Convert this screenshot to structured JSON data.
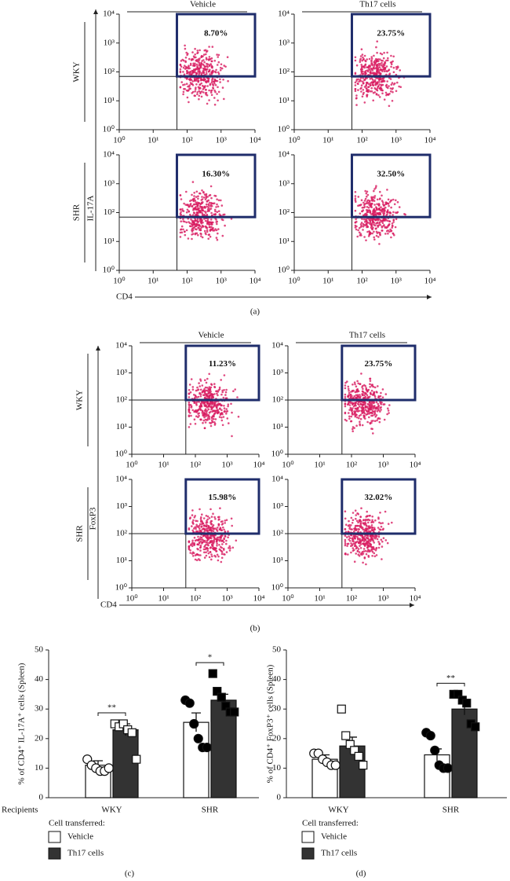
{
  "chart_data": [
    {
      "type": "flow",
      "caption": "(a)",
      "columns": [
        "Vehicle",
        "Th17 cells"
      ],
      "rows": [
        "WKY",
        "SHR"
      ],
      "x_label": "CD4",
      "y_label": "IL-17A",
      "log_scale": true,
      "xlim": [
        1,
        10000
      ],
      "ylim": [
        1,
        10000
      ],
      "xticks": [
        {
          "value": 1,
          "label": "10⁰"
        },
        {
          "value": 10,
          "label": "10¹"
        },
        {
          "value": 100,
          "label": "10²"
        },
        {
          "value": 1000,
          "label": "10³"
        },
        {
          "value": 10000,
          "label": "10⁴"
        }
      ],
      "yticks": [
        {
          "value": 1,
          "label": "10⁰"
        },
        {
          "value": 10,
          "label": "10¹"
        },
        {
          "value": 100,
          "label": "10²"
        },
        {
          "value": 1000,
          "label": "10³"
        },
        {
          "value": 10000,
          "label": "10⁴"
        }
      ],
      "gate": {
        "x": 50,
        "y": 70
      },
      "gate_color": "#1f2d6b",
      "event_color": "#d81b60",
      "values": [
        [
          8.7,
          23.75
        ],
        [
          16.3,
          32.5
        ]
      ],
      "value_labels": [
        [
          "8.70%",
          "23.75%"
        ],
        [
          "16.30%",
          "32.50%"
        ]
      ]
    },
    {
      "type": "flow",
      "caption": "(b)",
      "columns": [
        "Vehicle",
        "Th17 cells"
      ],
      "rows": [
        "WKY",
        "SHR"
      ],
      "x_label": "CD4",
      "y_label": "FoxP3",
      "log_scale": true,
      "xlim": [
        1,
        10000
      ],
      "ylim": [
        1,
        10000
      ],
      "xticks": [
        {
          "value": 1,
          "label": "10⁰"
        },
        {
          "value": 10,
          "label": "10¹"
        },
        {
          "value": 100,
          "label": "10²"
        },
        {
          "value": 1000,
          "label": "10³"
        },
        {
          "value": 10000,
          "label": "10⁴"
        }
      ],
      "yticks": [
        {
          "value": 1,
          "label": "10⁰"
        },
        {
          "value": 10,
          "label": "10¹"
        },
        {
          "value": 100,
          "label": "10²"
        },
        {
          "value": 1000,
          "label": "10³"
        },
        {
          "value": 10000,
          "label": "10⁴"
        }
      ],
      "gate": {
        "x": 50,
        "y": 100
      },
      "gate_color": "#1f2d6b",
      "event_color": "#d81b60",
      "values": [
        [
          11.23,
          23.75
        ],
        [
          15.98,
          32.02
        ]
      ],
      "value_labels": [
        [
          "11.23%",
          "23.75%"
        ],
        [
          "15.98%",
          "32.02%"
        ]
      ]
    },
    {
      "type": "bar",
      "caption": "(c)",
      "y_label": "% of CD4⁺ IL-17A⁺ cells (Spleen)",
      "x_label": "Recipients",
      "categories": [
        "WKY",
        "SHR"
      ],
      "ylim": [
        0,
        50
      ],
      "yticks": [
        0,
        10,
        20,
        30,
        40,
        50
      ],
      "legend_title": "Cell transferred:",
      "point_fills": [
        "#ffffff",
        "#000000"
      ],
      "series": [
        {
          "name": "Vehicle",
          "color": "#ffffff",
          "marker": "circle",
          "values": [
            11,
            25.5
          ],
          "errors": [
            1.5,
            3.2
          ],
          "points": [
            [
              13,
              11,
              10,
              9,
              9,
              10
            ],
            [
              33,
              32,
              25,
              20,
              17,
              17
            ]
          ]
        },
        {
          "name": "Th17 cells",
          "color": "#333333",
          "marker": "square",
          "values": [
            23,
            33
          ],
          "errors": [
            2,
            2
          ],
          "points": [
            [
              25,
              24,
              25,
              23,
              22,
              13
            ],
            [
              42,
              36,
              34,
              31,
              29,
              29
            ]
          ]
        }
      ],
      "annotations": [
        {
          "text": "**",
          "category": "WKY"
        },
        {
          "text": "*",
          "category": "SHR"
        }
      ]
    },
    {
      "type": "bar",
      "caption": "(d)",
      "y_label": "% of CD4⁺ FoxP3⁺ cells (Spleen)",
      "categories": [
        "WKY",
        "SHR"
      ],
      "ylim": [
        0,
        50
      ],
      "yticks": [
        0,
        10,
        20,
        30,
        40,
        50
      ],
      "legend_title": "Cell transferred:",
      "point_fills": [
        "#ffffff",
        "#000000"
      ],
      "series": [
        {
          "name": "Vehicle",
          "color": "#ffffff",
          "marker": "circle",
          "values": [
            13,
            14.5
          ],
          "errors": [
            1.5,
            2
          ],
          "points": [
            [
              15,
              15,
              13,
              12,
              11,
              11
            ],
            [
              22,
              21,
              16,
              11,
              10,
              10
            ]
          ]
        },
        {
          "name": "Th17 cells",
          "color": "#333333",
          "marker": "square",
          "values": [
            17.5,
            30
          ],
          "errors": [
            3,
            2
          ],
          "points": [
            [
              30,
              21,
              18,
              16,
              14,
              11
            ],
            [
              35,
              35,
              33,
              32,
              25,
              24
            ]
          ]
        }
      ],
      "annotations": [
        {
          "text": "**",
          "category": "SHR"
        }
      ]
    }
  ]
}
